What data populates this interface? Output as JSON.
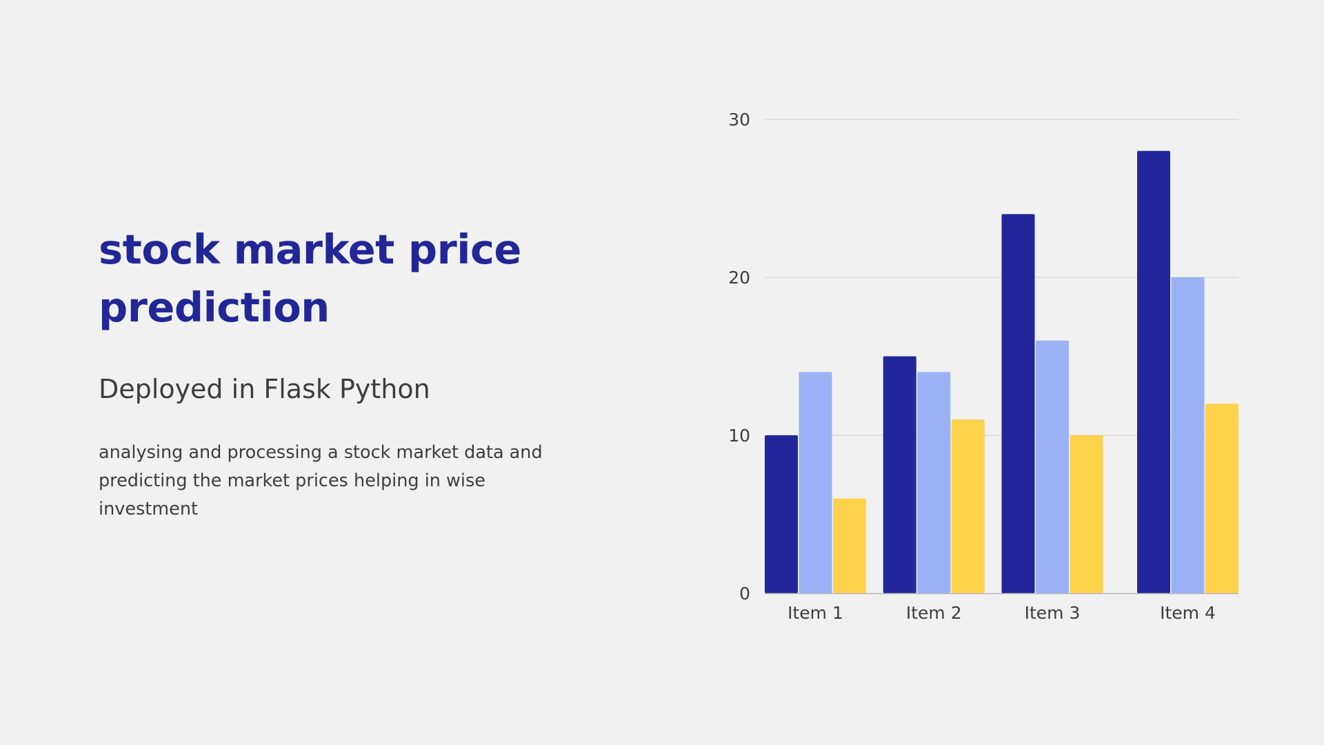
{
  "slide": {
    "title": "stock market price prediction",
    "subtitle": "Deployed in Flask Python",
    "description": "analysing and processing a stock market data and predicting the market prices helping in wise investment"
  },
  "colors": {
    "background": "#f1f1f1",
    "title": "#212797",
    "text": "#3d3d3d",
    "gridline": "#cfcfcf"
  },
  "chart_data": {
    "type": "bar",
    "categories": [
      "Item 1",
      "Item 2",
      "Item 3",
      "Item 4"
    ],
    "series": [
      {
        "color": "#21279a",
        "values": [
          10,
          15,
          24,
          28
        ]
      },
      {
        "color": "#9bb1f5",
        "values": [
          14,
          14,
          16,
          20
        ]
      },
      {
        "color": "#ffd24b",
        "values": [
          6,
          11,
          10,
          12
        ]
      }
    ],
    "yticks": [
      0,
      10,
      20,
      30
    ],
    "ylim": [
      0,
      30
    ],
    "grid": true,
    "legend": "none",
    "title": "",
    "xlabel": "",
    "ylabel": ""
  }
}
